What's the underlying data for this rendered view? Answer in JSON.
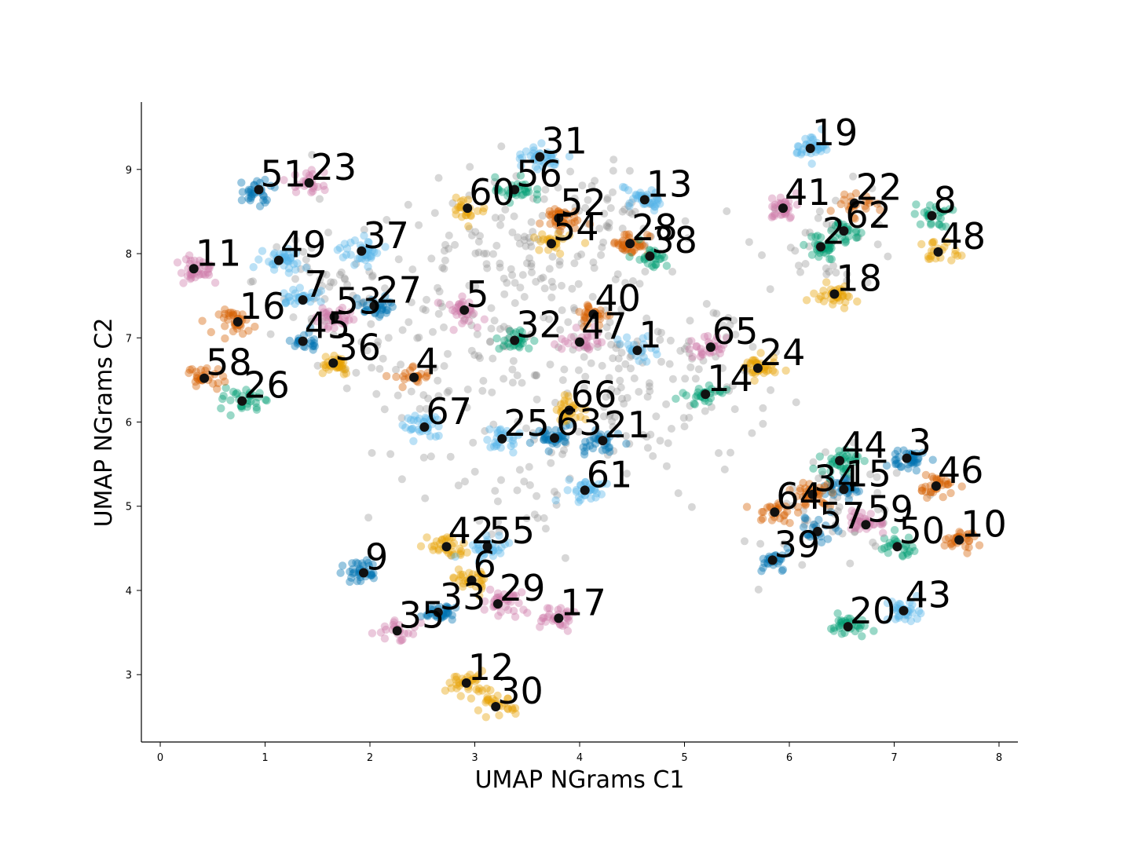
{
  "chart_data": {
    "type": "scatter",
    "title": "",
    "xlabel": "UMAP NGrams C1",
    "ylabel": "UMAP NGrams C2",
    "xlim": [
      -0.18,
      8.18
    ],
    "ylim": [
      2.2,
      9.8
    ],
    "xticks": [
      0,
      1,
      2,
      3,
      4,
      5,
      6,
      7,
      8
    ],
    "yticks": [
      3,
      4,
      5,
      6,
      7,
      8,
      9
    ],
    "grid": false,
    "legend": "none",
    "noise_color": "#8c8c8c",
    "centroid_color": "#111111",
    "palette": {
      "blue": "#0072b2",
      "orange": "#d55e00",
      "green": "#009e73",
      "pink": "#cc79a7",
      "sky": "#56b4e9",
      "yellow": "#e69f00"
    },
    "clusters": [
      {
        "label": "1",
        "x": 4.55,
        "y": 6.85,
        "color": "sky"
      },
      {
        "label": "2",
        "x": 6.3,
        "y": 8.08,
        "color": "green"
      },
      {
        "label": "3",
        "x": 7.12,
        "y": 5.57,
        "color": "blue"
      },
      {
        "label": "4",
        "x": 2.42,
        "y": 6.53,
        "color": "orange"
      },
      {
        "label": "5",
        "x": 2.9,
        "y": 7.33,
        "color": "pink"
      },
      {
        "label": "6",
        "x": 2.97,
        "y": 4.12,
        "color": "yellow"
      },
      {
        "label": "7",
        "x": 1.36,
        "y": 7.45,
        "color": "sky"
      },
      {
        "label": "8",
        "x": 7.36,
        "y": 8.45,
        "color": "green"
      },
      {
        "label": "9",
        "x": 1.94,
        "y": 4.21,
        "color": "blue"
      },
      {
        "label": "10",
        "x": 7.62,
        "y": 4.6,
        "color": "orange"
      },
      {
        "label": "11",
        "x": 0.32,
        "y": 7.82,
        "color": "pink"
      },
      {
        "label": "12",
        "x": 2.92,
        "y": 2.9,
        "color": "yellow"
      },
      {
        "label": "13",
        "x": 4.62,
        "y": 8.64,
        "color": "sky"
      },
      {
        "label": "14",
        "x": 5.2,
        "y": 6.33,
        "color": "green"
      },
      {
        "label": "15",
        "x": 6.52,
        "y": 5.2,
        "color": "blue"
      },
      {
        "label": "16",
        "x": 0.74,
        "y": 7.19,
        "color": "orange"
      },
      {
        "label": "17",
        "x": 3.8,
        "y": 3.67,
        "color": "pink"
      },
      {
        "label": "18",
        "x": 6.43,
        "y": 7.52,
        "color": "yellow"
      },
      {
        "label": "19",
        "x": 6.2,
        "y": 9.25,
        "color": "sky"
      },
      {
        "label": "20",
        "x": 6.56,
        "y": 3.57,
        "color": "green"
      },
      {
        "label": "21",
        "x": 4.22,
        "y": 5.78,
        "color": "blue"
      },
      {
        "label": "22",
        "x": 6.62,
        "y": 8.6,
        "color": "orange"
      },
      {
        "label": "23",
        "x": 1.42,
        "y": 8.84,
        "color": "pink"
      },
      {
        "label": "24",
        "x": 5.7,
        "y": 6.64,
        "color": "yellow"
      },
      {
        "label": "25",
        "x": 3.26,
        "y": 5.8,
        "color": "sky"
      },
      {
        "label": "26",
        "x": 0.78,
        "y": 6.25,
        "color": "green"
      },
      {
        "label": "27",
        "x": 2.04,
        "y": 7.38,
        "color": "blue"
      },
      {
        "label": "28",
        "x": 4.48,
        "y": 8.12,
        "color": "orange"
      },
      {
        "label": "29",
        "x": 3.22,
        "y": 3.84,
        "color": "pink"
      },
      {
        "label": "30",
        "x": 3.2,
        "y": 2.62,
        "color": "yellow"
      },
      {
        "label": "31",
        "x": 3.62,
        "y": 9.15,
        "color": "sky"
      },
      {
        "label": "32",
        "x": 3.38,
        "y": 6.97,
        "color": "green"
      },
      {
        "label": "33",
        "x": 2.65,
        "y": 3.74,
        "color": "blue"
      },
      {
        "label": "34",
        "x": 6.22,
        "y": 5.14,
        "color": "orange"
      },
      {
        "label": "35",
        "x": 2.26,
        "y": 3.52,
        "color": "pink"
      },
      {
        "label": "36",
        "x": 1.65,
        "y": 6.7,
        "color": "yellow"
      },
      {
        "label": "37",
        "x": 1.92,
        "y": 8.03,
        "color": "sky"
      },
      {
        "label": "38",
        "x": 4.67,
        "y": 7.97,
        "color": "green"
      },
      {
        "label": "39",
        "x": 5.84,
        "y": 4.36,
        "color": "blue"
      },
      {
        "label": "40",
        "x": 4.13,
        "y": 7.28,
        "color": "orange"
      },
      {
        "label": "41",
        "x": 5.94,
        "y": 8.54,
        "color": "pink"
      },
      {
        "label": "42",
        "x": 2.73,
        "y": 4.52,
        "color": "yellow"
      },
      {
        "label": "43",
        "x": 7.09,
        "y": 3.76,
        "color": "sky"
      },
      {
        "label": "44",
        "x": 6.48,
        "y": 5.54,
        "color": "green"
      },
      {
        "label": "45",
        "x": 1.36,
        "y": 6.96,
        "color": "blue"
      },
      {
        "label": "46",
        "x": 7.4,
        "y": 5.24,
        "color": "orange"
      },
      {
        "label": "47",
        "x": 4.0,
        "y": 6.95,
        "color": "pink"
      },
      {
        "label": "48",
        "x": 7.42,
        "y": 8.02,
        "color": "yellow"
      },
      {
        "label": "49",
        "x": 1.13,
        "y": 7.92,
        "color": "sky"
      },
      {
        "label": "50",
        "x": 7.03,
        "y": 4.52,
        "color": "green"
      },
      {
        "label": "51",
        "x": 0.94,
        "y": 8.76,
        "color": "blue"
      },
      {
        "label": "52",
        "x": 3.8,
        "y": 8.42,
        "color": "orange"
      },
      {
        "label": "53",
        "x": 1.66,
        "y": 7.25,
        "color": "pink"
      },
      {
        "label": "54",
        "x": 3.73,
        "y": 8.12,
        "color": "yellow"
      },
      {
        "label": "55",
        "x": 3.12,
        "y": 4.52,
        "color": "sky"
      },
      {
        "label": "56",
        "x": 3.38,
        "y": 8.76,
        "color": "green"
      },
      {
        "label": "57",
        "x": 6.27,
        "y": 4.7,
        "color": "blue"
      },
      {
        "label": "58",
        "x": 0.42,
        "y": 6.52,
        "color": "orange"
      },
      {
        "label": "59",
        "x": 6.73,
        "y": 4.78,
        "color": "pink"
      },
      {
        "label": "60",
        "x": 2.93,
        "y": 8.54,
        "color": "yellow"
      },
      {
        "label": "61",
        "x": 4.05,
        "y": 5.19,
        "color": "sky"
      },
      {
        "label": "62",
        "x": 6.52,
        "y": 8.27,
        "color": "green"
      },
      {
        "label": "63",
        "x": 3.76,
        "y": 5.81,
        "color": "blue"
      },
      {
        "label": "64",
        "x": 5.86,
        "y": 4.93,
        "color": "orange"
      },
      {
        "label": "65",
        "x": 5.25,
        "y": 6.89,
        "color": "pink"
      },
      {
        "label": "66",
        "x": 3.9,
        "y": 6.14,
        "color": "yellow"
      },
      {
        "label": "67",
        "x": 2.52,
        "y": 5.94,
        "color": "sky"
      }
    ]
  }
}
